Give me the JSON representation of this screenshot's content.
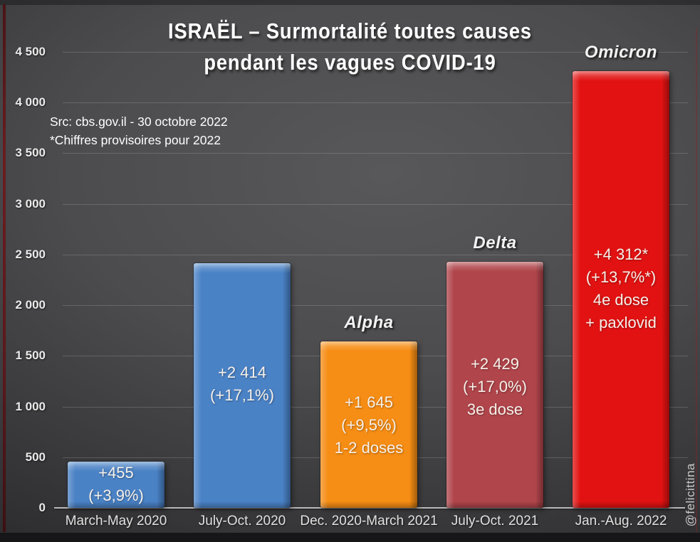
{
  "title": {
    "line1": "ISRAËL – Surmortalité toutes causes",
    "line2": "pendant les vagues COVID-19"
  },
  "source": {
    "line1": "Src: cbs.gov.il - 30 octobre 2022",
    "line2": "*Chiffres provisoires pour 2022"
  },
  "watermark": "@felicittina",
  "chart_data": {
    "type": "bar",
    "title": "ISRAËL – Surmortalité toutes causes pendant les vagues COVID-19",
    "xlabel": "",
    "ylabel": "",
    "ylim": [
      0,
      4500
    ],
    "ytick_interval": 500,
    "ytick_labels": [
      "0",
      "500",
      "1 000",
      "1 500",
      "2 000",
      "2 500",
      "3 000",
      "3 500",
      "4 000",
      "4 500"
    ],
    "grid": true,
    "legend": "none",
    "categories": [
      "March-May 2020",
      "July-Oct. 2020",
      "Dec. 2020-March 2021",
      "July-Oct. 2021",
      "Jan.-Aug. 2022"
    ],
    "values": [
      455,
      2414,
      1645,
      2429,
      4312
    ],
    "bars": [
      {
        "category": "March-May 2020",
        "value": 455,
        "color": "#4a82c6",
        "wave": "",
        "label_lines": [
          "+455",
          "(+3,9%)"
        ]
      },
      {
        "category": "July-Oct. 2020",
        "value": 2414,
        "color": "#4a82c6",
        "wave": "",
        "label_lines": [
          "+2 414",
          "(+17,1%)"
        ]
      },
      {
        "category": "Dec. 2020-March 2021",
        "value": 1645,
        "color": "#f68d14",
        "wave": "Alpha",
        "label_lines": [
          "+1 645",
          "(+9,5%)",
          "1-2 doses"
        ]
      },
      {
        "category": "July-Oct. 2021",
        "value": 2429,
        "color": "#b0454b",
        "wave": "Delta",
        "label_lines": [
          "+2 429",
          "(+17,0%)",
          "3e dose"
        ]
      },
      {
        "category": "Jan.-Aug. 2022",
        "value": 4312,
        "color": "#e21212",
        "wave": "Omicron",
        "label_lines": [
          "+4 312*",
          "(+13,7%*)",
          "4e dose",
          "+ paxlovid"
        ]
      }
    ]
  }
}
